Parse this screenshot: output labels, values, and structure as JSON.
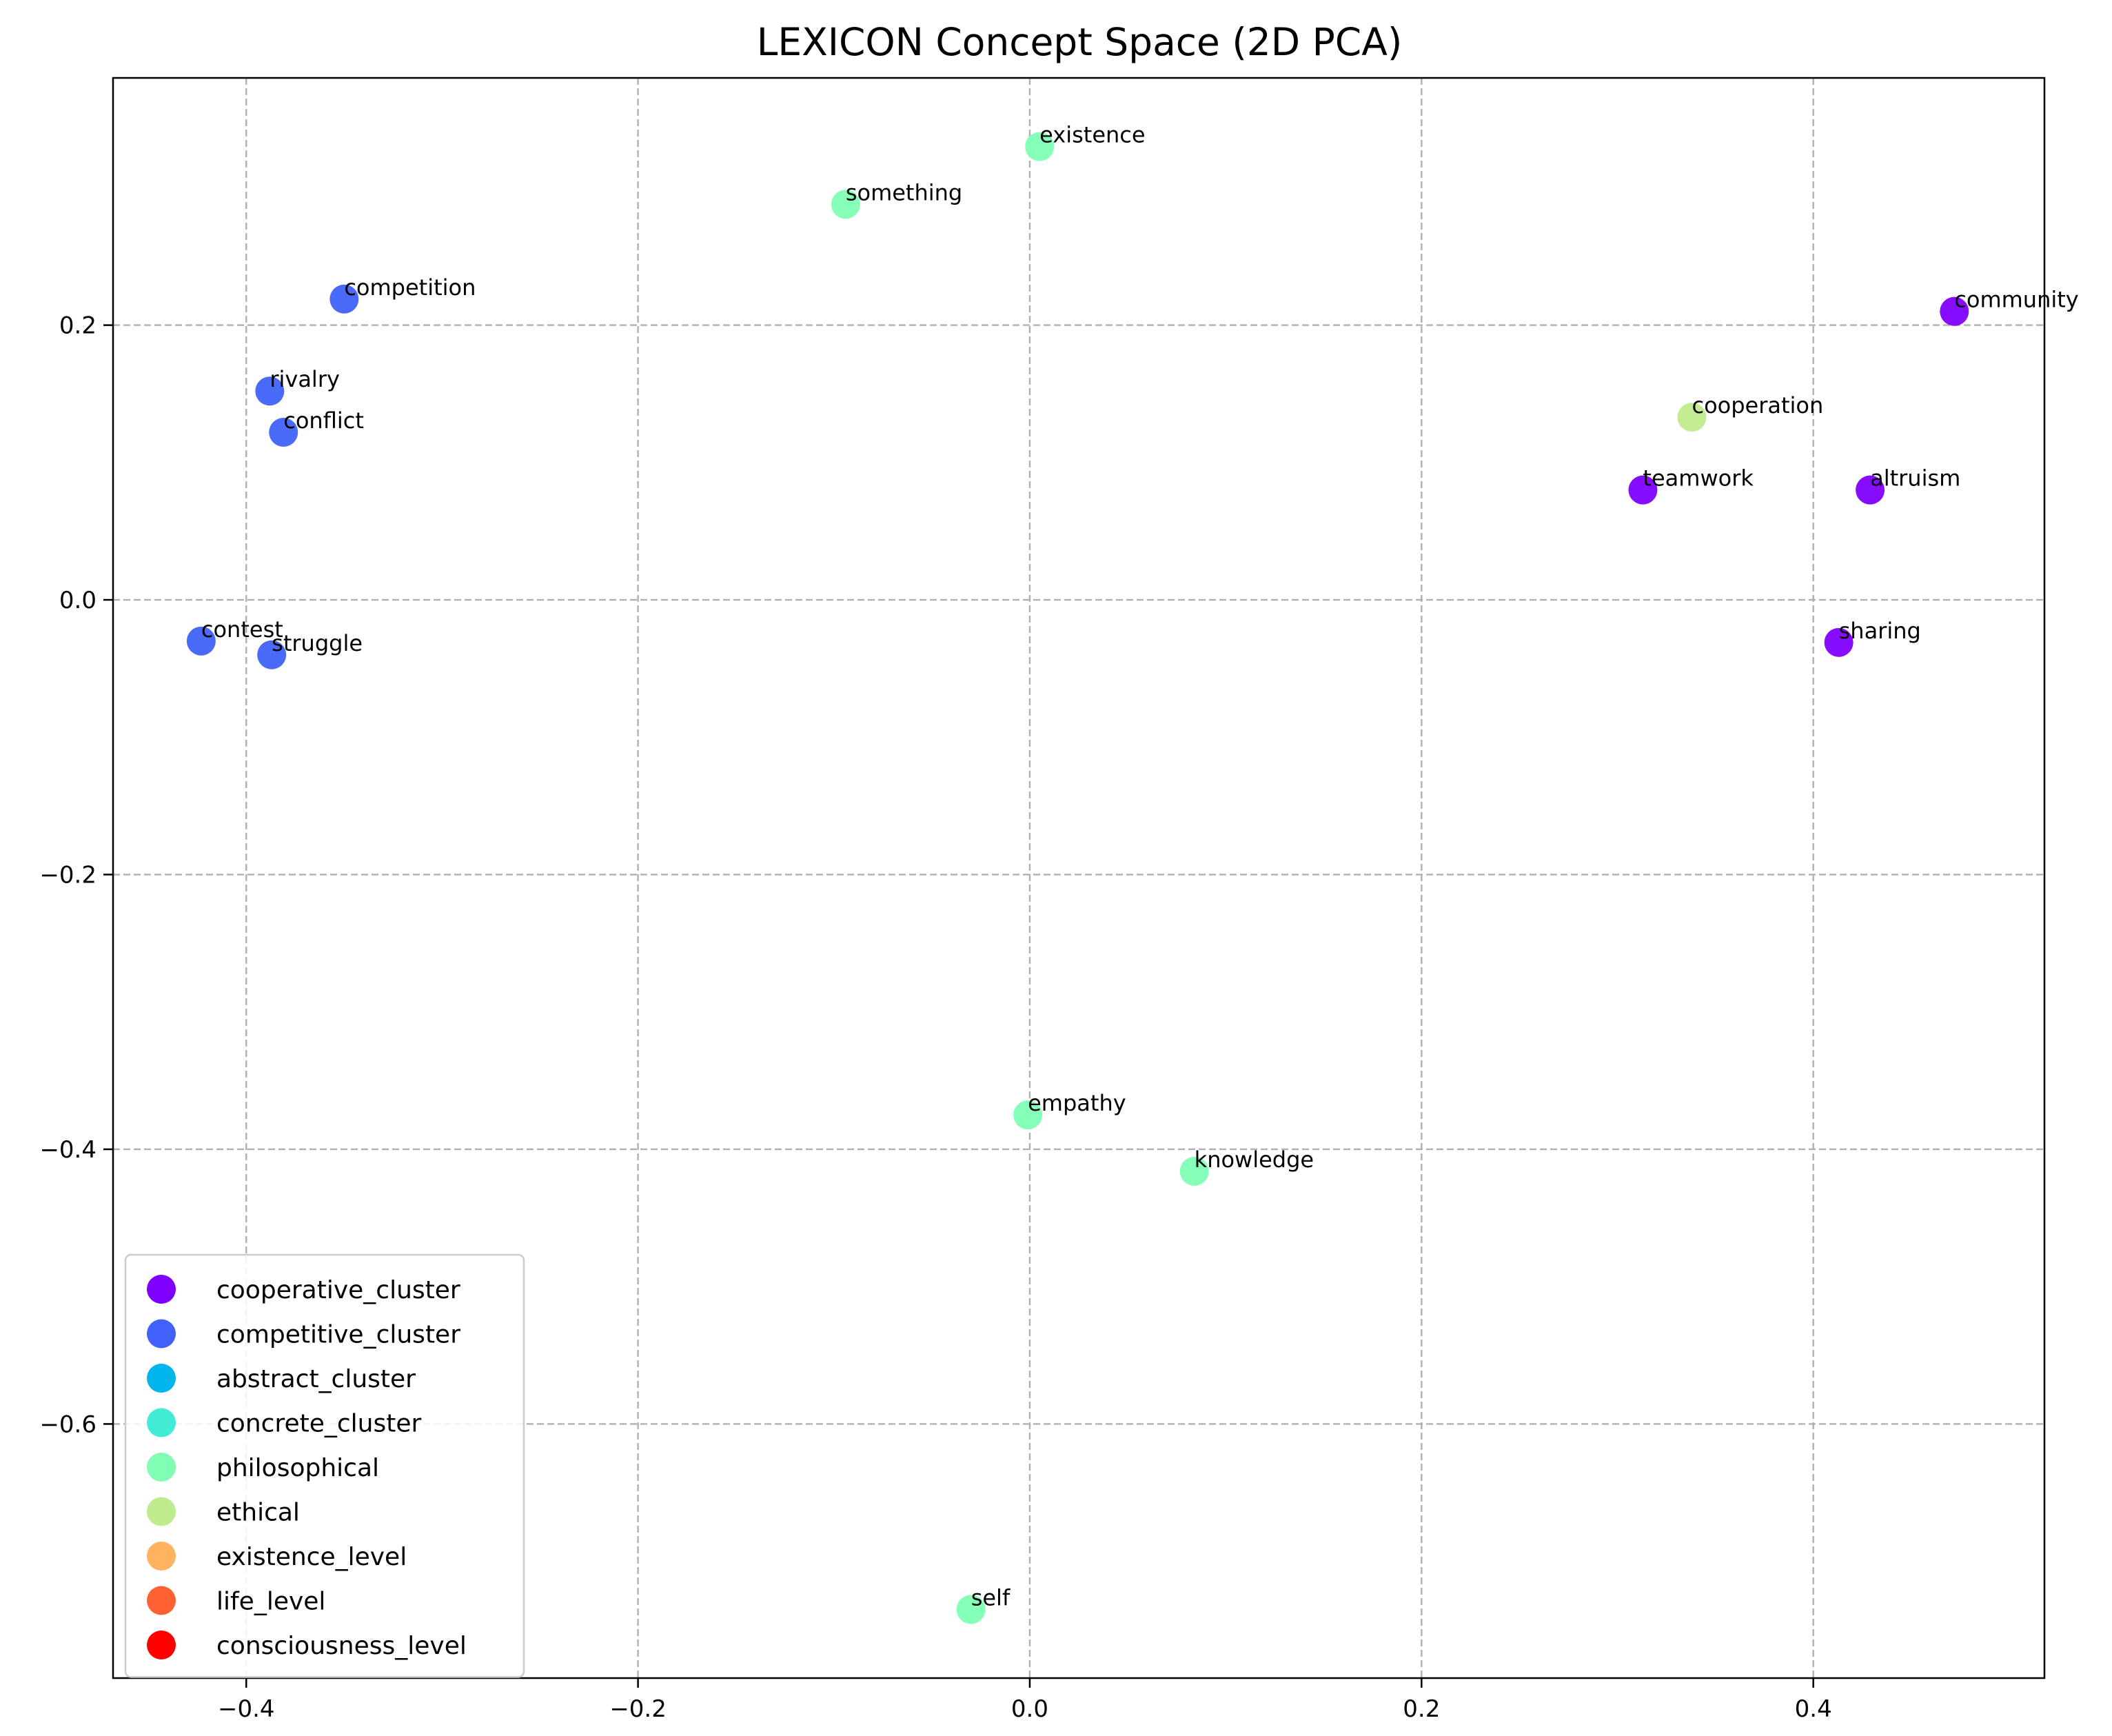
{
  "chart_data": {
    "type": "scatter",
    "title": "LEXICON Concept Space (2D PCA)",
    "xlabel": "",
    "ylabel": "",
    "xlim": [
      -0.468,
      0.518
    ],
    "ylim": [
      -0.785,
      0.38
    ],
    "x_ticks": [
      -0.4,
      -0.2,
      0.0,
      0.2,
      0.4
    ],
    "y_ticks": [
      -0.6,
      -0.4,
      -0.2,
      0.0,
      0.2
    ],
    "x_tick_labels": [
      "−0.4",
      "−0.2",
      "0.0",
      "0.2",
      "0.4"
    ],
    "y_tick_labels": [
      "−0.6",
      "−0.4",
      "−0.2",
      "0.0",
      "0.2"
    ],
    "grid": true,
    "legend_position": "lower-left",
    "legend": [
      {
        "name": "cooperative_cluster",
        "color": "#8000ff"
      },
      {
        "name": "competitive_cluster",
        "color": "#4062fa"
      },
      {
        "name": "abstract_cluster",
        "color": "#00b5eb"
      },
      {
        "name": "concrete_cluster",
        "color": "#40ecd4"
      },
      {
        "name": "philosophical",
        "color": "#80ffb4"
      },
      {
        "name": "ethical",
        "color": "#c0eb8d"
      },
      {
        "name": "existence_level",
        "color": "#ffb360"
      },
      {
        "name": "life_level",
        "color": "#ff6232"
      },
      {
        "name": "consciousness_level",
        "color": "#ff0000"
      }
    ],
    "points": [
      {
        "label": "existence",
        "x": 0.005,
        "y": 0.33,
        "color": "#80ffb4"
      },
      {
        "label": "something",
        "x": -0.094,
        "y": 0.288,
        "color": "#80ffb4"
      },
      {
        "label": "competition",
        "x": -0.35,
        "y": 0.219,
        "color": "#4062fa"
      },
      {
        "label": "rivalry",
        "x": -0.388,
        "y": 0.152,
        "color": "#4062fa"
      },
      {
        "label": "conflict",
        "x": -0.381,
        "y": 0.122,
        "color": "#4062fa"
      },
      {
        "label": "contest",
        "x": -0.423,
        "y": -0.03,
        "color": "#4062fa"
      },
      {
        "label": "struggle",
        "x": -0.387,
        "y": -0.04,
        "color": "#4062fa"
      },
      {
        "label": "community",
        "x": 0.472,
        "y": 0.21,
        "color": "#8000ff"
      },
      {
        "label": "cooperation",
        "x": 0.338,
        "y": 0.133,
        "color": "#c0eb8d"
      },
      {
        "label": "teamwork",
        "x": 0.313,
        "y": 0.08,
        "color": "#8000ff"
      },
      {
        "label": "altruism",
        "x": 0.429,
        "y": 0.08,
        "color": "#8000ff"
      },
      {
        "label": "sharing",
        "x": 0.413,
        "y": -0.031,
        "color": "#8000ff"
      },
      {
        "label": "empathy",
        "x": -0.001,
        "y": -0.375,
        "color": "#80ffb4"
      },
      {
        "label": "knowledge",
        "x": 0.084,
        "y": -0.416,
        "color": "#80ffb4"
      },
      {
        "label": "self",
        "x": -0.03,
        "y": -0.735,
        "color": "#80ffb4"
      }
    ]
  }
}
